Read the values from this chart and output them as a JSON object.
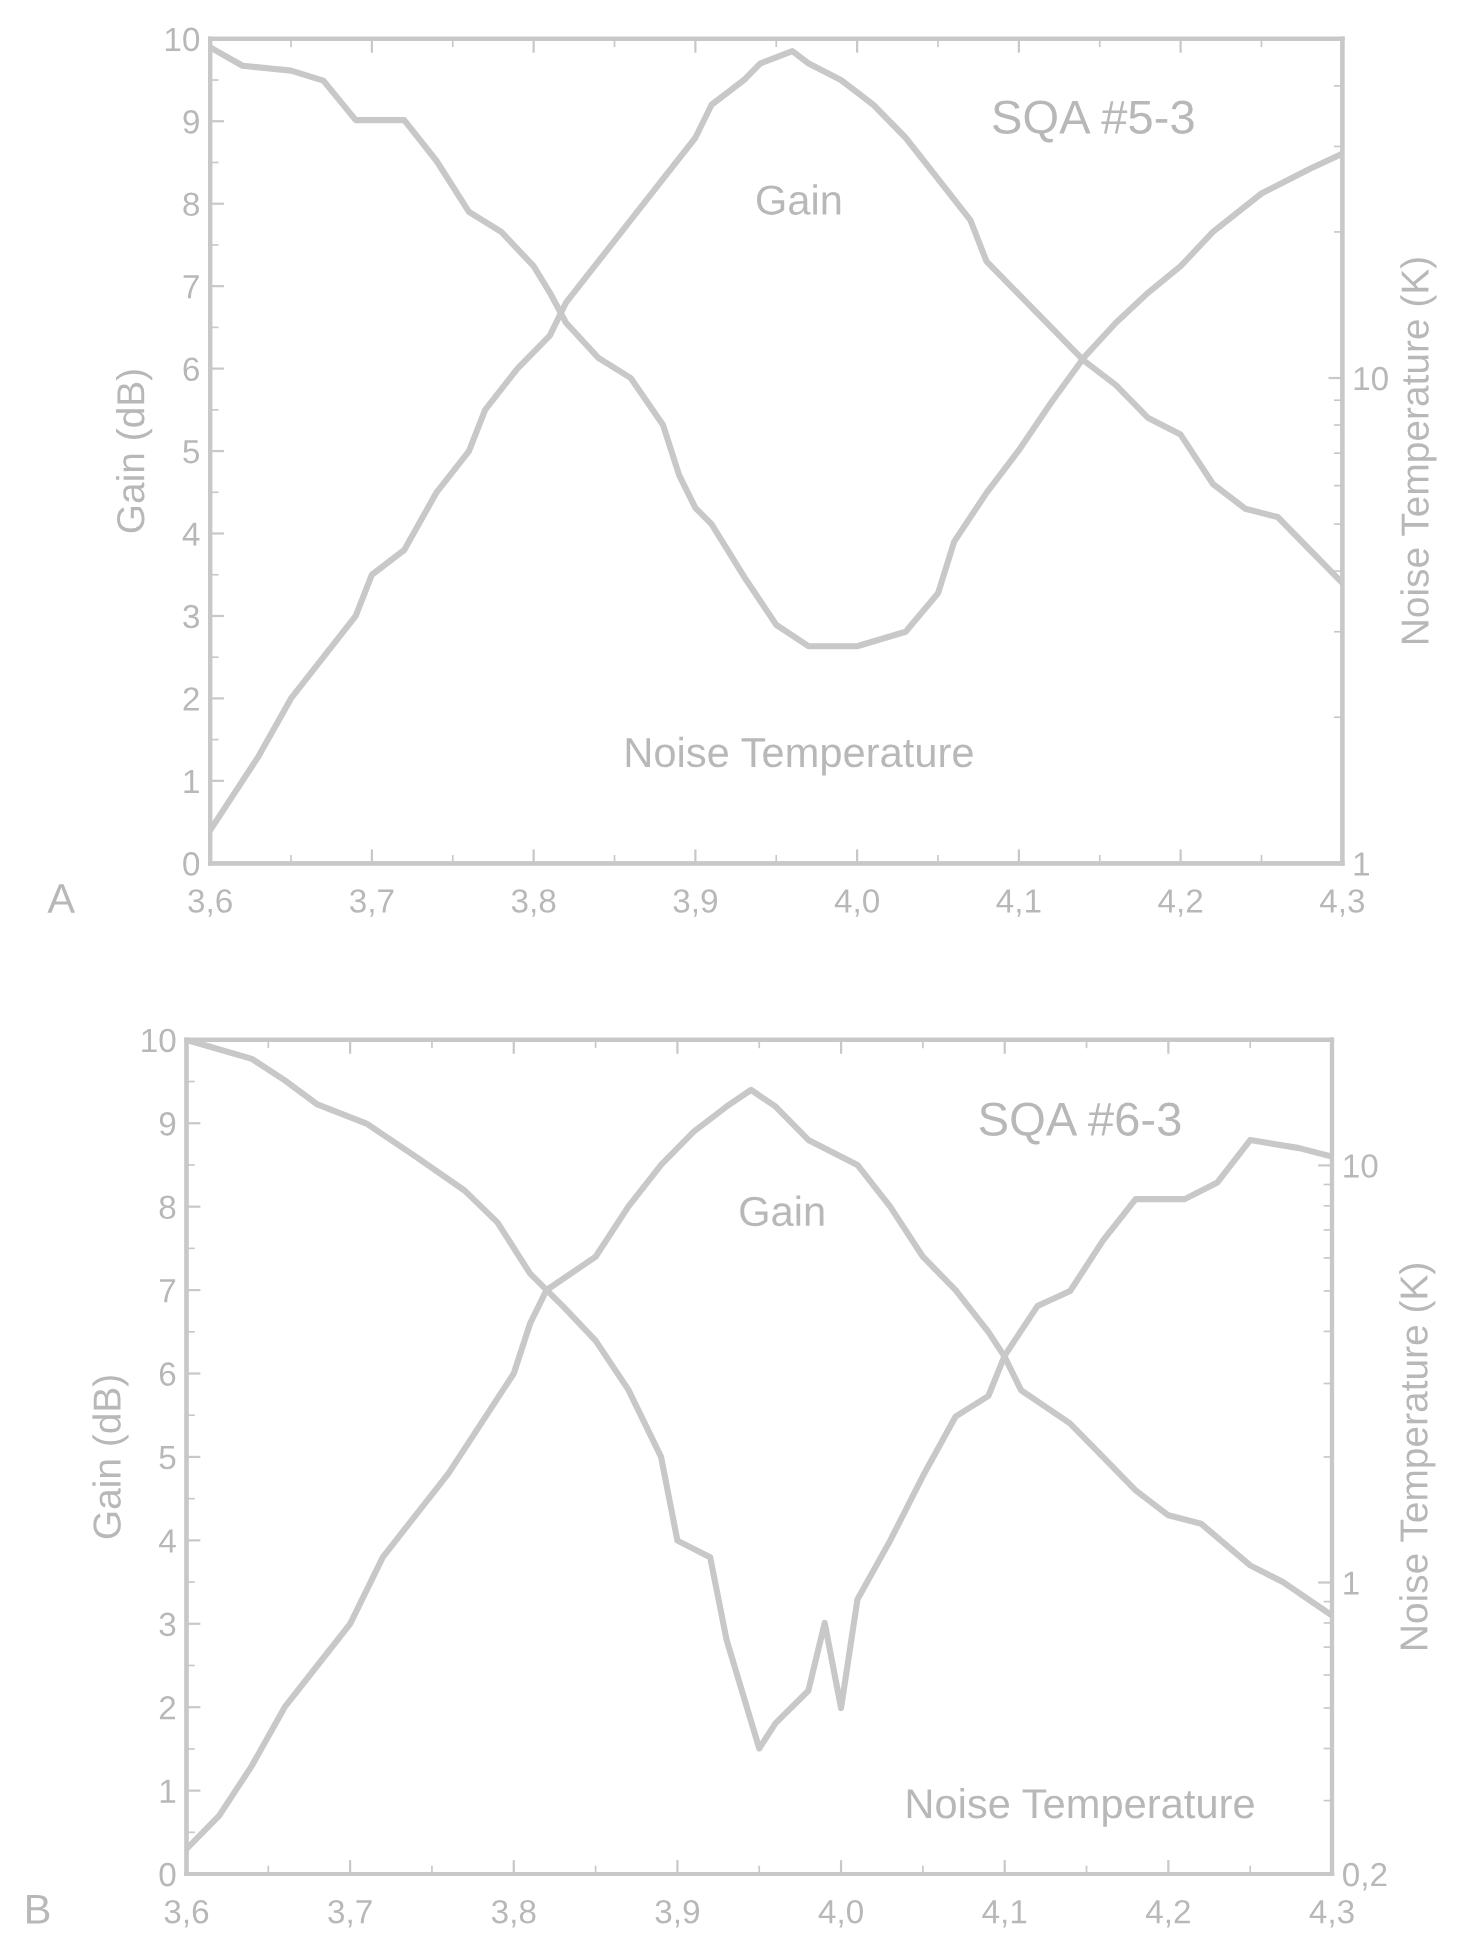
{
  "chart_data": [
    {
      "type": "line",
      "title": "SQA #5-3",
      "xlabel": null,
      "ylabel": "Gain (dB)",
      "y2label": "Noise Temperature (K)",
      "annotations": [
        "A"
      ],
      "xlim": [
        3.6,
        4.3
      ],
      "xticks": [
        {
          "value": 3.6,
          "label": "3,6"
        },
        {
          "value": 3.7,
          "label": "3,7"
        },
        {
          "value": 3.8,
          "label": "3,8"
        },
        {
          "value": 3.9,
          "label": "3,9"
        },
        {
          "value": 4.0,
          "label": "4,0"
        },
        {
          "value": 4.1,
          "label": "4,1"
        },
        {
          "value": 4.2,
          "label": "4,2"
        },
        {
          "value": 4.3,
          "label": "4,3"
        }
      ],
      "ylim": [
        0,
        10
      ],
      "yticks": [
        0,
        1,
        2,
        3,
        4,
        5,
        6,
        7,
        8,
        9,
        10
      ],
      "y2lim": [
        1,
        50
      ],
      "y2ticks": [
        1,
        10
      ],
      "log": "y2",
      "grid": false,
      "legend": false,
      "marker": "none",
      "line_style": "solid",
      "series": [
        {
          "name": "Gain",
          "color": "#c8c8c8",
          "x": [
            3.6,
            3.63,
            3.65,
            3.67,
            3.69,
            3.7,
            3.72,
            3.74,
            3.76,
            3.77,
            3.79,
            3.81,
            3.82,
            3.84,
            3.86,
            3.88,
            3.9,
            3.91,
            3.93,
            3.94,
            3.96,
            3.97,
            3.99,
            4.01,
            4.03,
            4.05,
            4.07,
            4.08,
            4.1,
            4.12,
            4.14,
            4.16,
            4.18,
            4.2,
            4.22,
            4.24,
            4.26,
            4.28,
            4.3
          ],
          "values": [
            0.4,
            1.3,
            2.0,
            2.5,
            3.0,
            3.5,
            3.8,
            4.5,
            5.0,
            5.5,
            6.0,
            6.4,
            6.8,
            7.3,
            7.8,
            8.3,
            8.8,
            9.2,
            9.5,
            9.7,
            9.85,
            9.7,
            9.5,
            9.2,
            8.8,
            8.3,
            7.8,
            7.3,
            6.9,
            6.5,
            6.1,
            5.8,
            5.4,
            5.2,
            4.6,
            4.3,
            4.2,
            3.8,
            3.4
          ]
        },
        {
          "name": "Noise Temperature",
          "color": "#c8c8c8",
          "axis": "y2",
          "x": [
            3.6,
            3.62,
            3.65,
            3.67,
            3.69,
            3.72,
            3.74,
            3.76,
            3.78,
            3.8,
            3.81,
            3.82,
            3.84,
            3.86,
            3.88,
            3.89,
            3.9,
            3.91,
            3.93,
            3.95,
            3.97,
            3.99,
            4.0,
            4.03,
            4.05,
            4.06,
            4.08,
            4.1,
            4.12,
            4.14,
            4.16,
            4.18,
            4.2,
            4.22,
            4.25,
            4.28,
            4.3
          ],
          "values": [
            48,
            44,
            43,
            41,
            34,
            34,
            28,
            22,
            20,
            17,
            15,
            13,
            11,
            10,
            8,
            6.3,
            5.4,
            5.0,
            3.9,
            3.1,
            2.8,
            2.8,
            2.8,
            3.0,
            3.6,
            4.6,
            5.8,
            7.1,
            8.9,
            11,
            13,
            15,
            17,
            20,
            24,
            27,
            29
          ]
        }
      ]
    },
    {
      "type": "line",
      "title": "SQA #6-3",
      "xlabel": null,
      "ylabel": "Gain (dB)",
      "y2label": "Noise Temperature (K)",
      "annotations": [
        "B"
      ],
      "xlim": [
        3.6,
        4.3
      ],
      "xticks": [
        {
          "value": 3.6,
          "label": "3,6"
        },
        {
          "value": 3.7,
          "label": "3,7"
        },
        {
          "value": 3.8,
          "label": "3,8"
        },
        {
          "value": 3.9,
          "label": "3,9"
        },
        {
          "value": 4.0,
          "label": "4,0"
        },
        {
          "value": 4.1,
          "label": "4,1"
        },
        {
          "value": 4.2,
          "label": "4,2"
        },
        {
          "value": 4.3,
          "label": "4,3"
        }
      ],
      "ylim": [
        0,
        10
      ],
      "yticks": [
        0,
        1,
        2,
        3,
        4,
        5,
        6,
        7,
        8,
        9,
        10
      ],
      "y2lim": [
        0.2,
        20
      ],
      "y2ticks": [
        {
          "value": 0.2,
          "label": "0,2"
        },
        1,
        10
      ],
      "log": "y2",
      "grid": false,
      "legend": false,
      "marker": "none",
      "line_style": "solid",
      "series": [
        {
          "name": "Gain",
          "color": "#c8c8c8",
          "x": [
            3.6,
            3.62,
            3.64,
            3.66,
            3.68,
            3.7,
            3.72,
            3.74,
            3.76,
            3.78,
            3.8,
            3.81,
            3.82,
            3.85,
            3.87,
            3.89,
            3.91,
            3.93,
            3.945,
            3.96,
            3.98,
            4.01,
            4.03,
            4.05,
            4.07,
            4.09,
            4.1,
            4.11,
            4.14,
            4.16,
            4.18,
            4.2,
            4.22,
            4.25,
            4.27,
            4.3
          ],
          "values": [
            0.3,
            0.7,
            1.3,
            2.0,
            2.5,
            3.0,
            3.8,
            4.3,
            4.8,
            5.4,
            6.0,
            6.6,
            7.0,
            7.4,
            8.0,
            8.5,
            8.9,
            9.2,
            9.4,
            9.2,
            8.8,
            8.5,
            8.0,
            7.4,
            7.0,
            6.5,
            6.2,
            5.8,
            5.4,
            5.0,
            4.6,
            4.3,
            4.2,
            3.7,
            3.5,
            3.1
          ]
        },
        {
          "name": "Noise Temperature",
          "color": "#c8c8c8",
          "axis": "y2",
          "x": [
            3.6,
            3.64,
            3.66,
            3.68,
            3.71,
            3.74,
            3.77,
            3.79,
            3.81,
            3.83,
            3.85,
            3.87,
            3.89,
            3.9,
            3.92,
            3.93,
            3.95,
            3.96,
            3.98,
            3.99,
            4.0,
            4.01,
            4.03,
            4.05,
            4.07,
            4.09,
            4.1,
            4.12,
            4.14,
            4.16,
            4.18,
            4.21,
            4.23,
            4.25,
            4.28,
            4.3
          ],
          "values": [
            20,
            18,
            16,
            14,
            12.6,
            10.5,
            8.7,
            7.3,
            5.5,
            4.6,
            3.8,
            2.9,
            2.0,
            1.26,
            1.15,
            0.73,
            0.4,
            0.46,
            0.55,
            0.8,
            0.5,
            0.91,
            1.26,
            1.8,
            2.5,
            2.8,
            3.5,
            4.6,
            5.0,
            6.6,
            8.3,
            8.3,
            9.1,
            11.5,
            11,
            10.5
          ]
        }
      ]
    }
  ]
}
